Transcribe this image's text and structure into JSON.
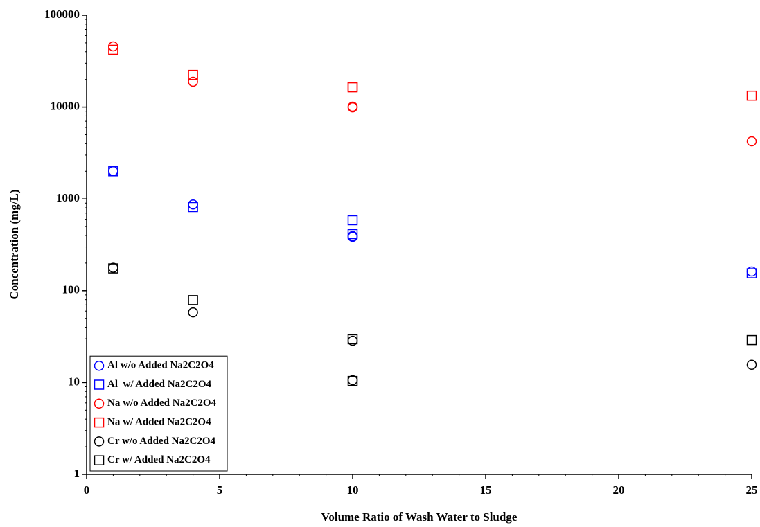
{
  "chart_data": {
    "type": "scatter",
    "x_label": "Volume Ratio of Wash Water to Sludge",
    "y_label": "Concentration (mg/L)",
    "xlim": [
      0,
      25
    ],
    "xticks": [
      0,
      5,
      10,
      15,
      20,
      25
    ],
    "ylim": [
      1,
      100000
    ],
    "yticks": [
      1,
      10,
      100,
      1000,
      10000,
      100000
    ],
    "y_scale": "log",
    "grid": false,
    "legend": "lower left",
    "series": [
      {
        "name": "Al w/o Added Na2C2O4",
        "color": "#0000ff",
        "marker": "circle",
        "x": [
          1,
          4,
          10,
          10,
          25
        ],
        "values": [
          2010,
          870,
          386,
          395,
          162
        ]
      },
      {
        "name": "Al  w/ Added Na2C2O4",
        "color": "#0000ff",
        "marker": "square",
        "x": [
          1,
          4,
          10,
          10,
          25
        ],
        "values": [
          2000,
          815,
          586,
          414,
          155
        ]
      },
      {
        "name": "Na w/o Added Na2C2O4",
        "color": "#ff0000",
        "marker": "circle",
        "x": [
          1,
          4,
          10,
          10,
          25
        ],
        "values": [
          45800,
          18900,
          9900,
          10100,
          4240
        ]
      },
      {
        "name": "Na w/ Added Na2C2O4",
        "color": "#ff0000",
        "marker": "square",
        "x": [
          1,
          4,
          10,
          10,
          25
        ],
        "values": [
          42000,
          22400,
          16400,
          16600,
          13300
        ]
      },
      {
        "name": "Cr w/o Added Na2C2O4",
        "color": "#000000",
        "marker": "circle",
        "x": [
          1,
          4,
          10,
          10,
          25
        ],
        "values": [
          178,
          58,
          28.5,
          10.6,
          15.6
        ]
      },
      {
        "name": "Cr w/ Added Na2C2O4",
        "color": "#000000",
        "marker": "square",
        "x": [
          1,
          4,
          10,
          10,
          25
        ],
        "values": [
          175,
          79,
          29.6,
          10.4,
          29
        ]
      }
    ]
  }
}
